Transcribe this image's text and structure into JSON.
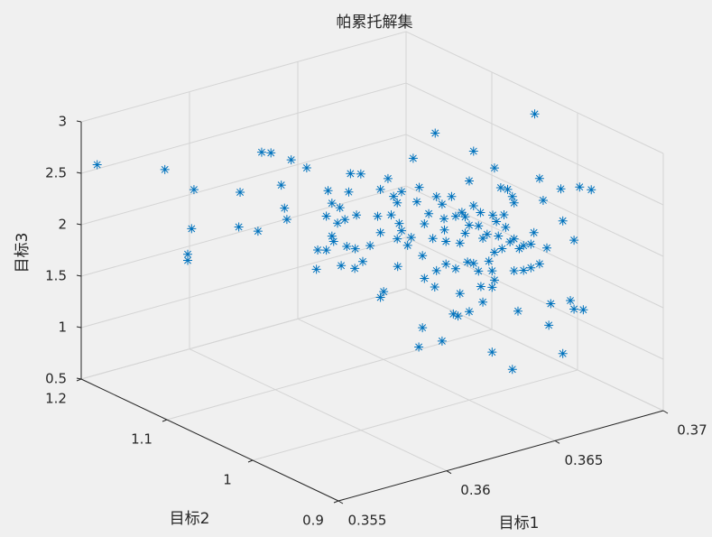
{
  "chart_data": {
    "type": "scatter3",
    "title": "帕累托解集",
    "xlabel": "目标1",
    "ylabel": "目标2",
    "zlabel": "目标3",
    "color": "#0072bd",
    "grid": true,
    "xlim": [
      0.355,
      0.37
    ],
    "ylim": [
      0.9,
      1.2
    ],
    "zlim": [
      0.5,
      3
    ],
    "xticks": [
      0.355,
      0.36,
      0.365,
      0.37
    ],
    "yticks": [
      0.9,
      1,
      1.1,
      1.2
    ],
    "zticks": [
      0.5,
      1,
      1.5,
      2,
      2.5,
      3
    ],
    "x": [
      0.35542,
      0.35716,
      0.35791,
      0.35784,
      0.35774,
      0.35774,
      0.35909,
      0.35907,
      0.35956,
      0.35965,
      0.35988,
      0.36042,
      0.36082,
      0.36016,
      0.36023,
      0.3603,
      0.36109,
      0.36107,
      0.36133,
      0.36137,
      0.36147,
      0.36133,
      0.36161,
      0.36147,
      0.36151,
      0.36168,
      0.36189,
      0.36193,
      0.36221,
      0.36184,
      0.36207,
      0.3617,
      0.36205,
      0.36226,
      0.36179,
      0.36209,
      0.36263,
      0.36244,
      0.36272,
      0.36291,
      0.36272,
      0.36305,
      0.36314,
      0.36326,
      0.36298,
      0.36319,
      0.36326,
      0.36342,
      0.36316,
      0.36279,
      0.36272,
      0.36356,
      0.36372,
      0.36365,
      0.36384,
      0.36396,
      0.36379,
      0.36384,
      0.366,
      0.36416,
      0.36435,
      0.3643,
      0.36454,
      0.36465,
      0.3644,
      0.3644,
      0.36437,
      0.36465,
      0.36477,
      0.36489,
      0.365,
      0.36512,
      0.36512,
      0.365,
      0.36489,
      0.36523,
      0.36535,
      0.36547,
      0.36528,
      0.36482,
      0.36565,
      0.36582,
      0.36598,
      0.36612,
      0.36616,
      0.36589,
      0.36561,
      0.3657,
      0.36575,
      0.36593,
      0.36584,
      0.36565,
      0.36551,
      0.36558,
      0.36565,
      0.36558,
      0.3653,
      0.36512,
      0.36496,
      0.36523,
      0.36605,
      0.36616,
      0.36628,
      0.3664,
      0.36658,
      0.36668,
      0.36616,
      0.3664,
      0.36658,
      0.36682,
      0.36682,
      0.36691,
      0.367,
      0.36737,
      0.36742,
      0.3677,
      0.36784,
      0.36814,
      0.36925,
      0.36458,
      0.36472,
      0.365,
      0.36535,
      0.36558,
      0.36612,
      0.36626,
      0.3671,
      0.36705,
      0.36761,
      0.3677,
      0.36793,
      0.36742,
      0.36379,
      0.3637,
      0.3643,
      0.36412,
      0.36477,
      0.36416,
      0.36351,
      0.36314,
      0.36407
    ],
    "y": [
      1.192,
      1.157,
      1.142,
      1.143,
      1.145,
      1.145,
      1.118,
      1.119,
      1.109,
      1.107,
      1.102,
      1.092,
      1.084,
      1.097,
      1.095,
      1.094,
      1.078,
      1.079,
      1.074,
      1.073,
      1.071,
      1.074,
      1.068,
      1.071,
      1.07,
      1.067,
      1.062,
      1.061,
      1.056,
      1.063,
      1.059,
      1.066,
      1.059,
      1.055,
      1.064,
      1.058,
      1.047,
      1.051,
      1.046,
      1.042,
      1.046,
      1.039,
      1.037,
      1.035,
      1.04,
      1.036,
      1.035,
      1.032,
      1.037,
      1.044,
      1.046,
      1.029,
      1.026,
      1.027,
      1.023,
      1.021,
      1.024,
      1.023,
      1.065,
      1.017,
      1.013,
      1.014,
      1.009,
      1.007,
      1.012,
      1.012,
      1.013,
      1.007,
      1.005,
      1.002,
      1.0,
      0.998,
      0.998,
      1.0,
      1.002,
      0.995,
      0.993,
      0.991,
      0.994,
      1.004,
      0.987,
      0.984,
      0.98,
      0.978,
      0.977,
      0.982,
      0.988,
      0.986,
      0.985,
      0.981,
      0.983,
      0.987,
      0.99,
      0.988,
      0.987,
      0.988,
      0.994,
      0.998,
      1.001,
      0.995,
      0.979,
      0.977,
      0.974,
      0.972,
      0.968,
      0.967,
      0.977,
      0.972,
      0.968,
      0.964,
      0.964,
      0.962,
      0.96,
      0.953,
      0.952,
      0.946,
      0.943,
      0.937,
      1.031,
      1.008,
      1.006,
      1.0,
      0.993,
      0.988,
      0.978,
      0.975,
      0.958,
      0.959,
      0.948,
      0.946,
      0.941,
      0.952,
      1.024,
      1.026,
      1.014,
      1.018,
      1.005,
      1.017,
      1.03,
      1.037,
      1.019
    ],
    "z": [
      2.59,
      2.58,
      2.4,
      2.02,
      1.77,
      1.71,
      2.4,
      2.06,
      2.03,
      2.8,
      2.8,
      2.74,
      2.67,
      2.49,
      2.27,
      2.16,
      1.88,
      1.69,
      1.88,
      2.46,
      2.34,
      2.21,
      2.15,
      2.02,
      1.97,
      2.3,
      2.46,
      2.64,
      2.64,
      1.93,
      1.91,
      1.74,
      1.72,
      1.79,
      2.19,
      2.24,
      2.24,
      1.95,
      2.08,
      2.61,
      2.5,
      2.44,
      2.38,
      2.49,
      2.26,
      2.18,
      2.11,
      1.97,
      1.76,
      1.51,
      1.45,
      2.82,
      2.54,
      2.4,
      2.19,
      2.29,
      1.88,
      1.66,
      2.78,
      2.46,
      2.25,
      2.39,
      2.47,
      2.28,
      2.03,
      1.81,
      2.14,
      1.77,
      2.02,
      2.28,
      2.63,
      2.92,
      2.39,
      2.2,
      2.12,
      2.2,
      2.08,
      2.12,
      2.33,
      2.32,
      2.77,
      2.58,
      2.57,
      2.5,
      2.44,
      2.32,
      2.31,
      2.25,
      2.11,
      2.2,
      1.99,
      1.95,
      1.86,
      1.77,
      1.68,
      1.61,
      1.61,
      1.83,
      1.84,
      1.76,
      2.06,
      2.09,
      2.0,
      2.03,
      2.05,
      2.16,
      1.78,
      1.79,
      1.82,
      1.86,
      2.69,
      2.48,
      2.02,
      2.6,
      2.29,
      2.11,
      2.63,
      2.61,
      2.91,
      1.33,
      1.31,
      1.36,
      1.46,
      0.98,
      0.82,
      1.39,
      1.48,
      1.27,
      1.52,
      1.44,
      1.44,
      1.0,
      1.18,
      0.99,
      1.06,
      1.58,
      1.53,
      1.74,
      2.05,
      2.03,
      2.05
    ]
  }
}
